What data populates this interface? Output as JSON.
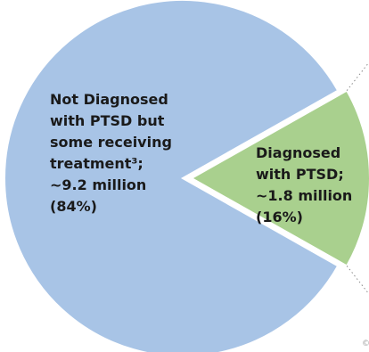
{
  "chart_data": {
    "type": "pie",
    "slices": [
      {
        "label_lines": [
          "Not Diagnosed",
          "with PTSD but",
          "some receiving",
          "treatment³;",
          "~9.2 million",
          "(84%)"
        ],
        "value_millions": 9.2,
        "percent": 84,
        "color": "#a8c4e6",
        "exploded": false
      },
      {
        "label_lines": [
          "Diagnosed",
          "with PTSD;",
          "~1.8 million",
          "(16%)"
        ],
        "value_millions": 1.8,
        "percent": 16,
        "color": "#a9d08e",
        "exploded": true
      }
    ],
    "edge_color": "#ffffff",
    "leader_line_style": "dotted"
  },
  "copyright_mark": "©"
}
